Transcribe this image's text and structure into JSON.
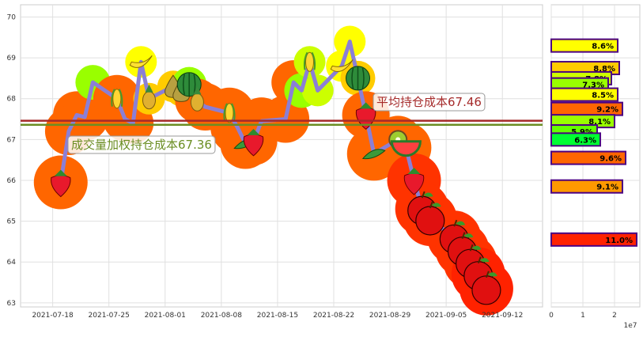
{
  "chart_data": [
    {
      "type": "line",
      "x_ticks": [
        "2021-07-18",
        "2021-07-25",
        "2021-08-01",
        "2021-08-08",
        "2021-08-15",
        "2021-08-22",
        "2021-08-29",
        "2021-09-05",
        "2021-09-12"
      ],
      "y_ticks": [
        63,
        64,
        65,
        66,
        67,
        68,
        69,
        70
      ],
      "xlim": [
        "2021-07-14",
        "2021-09-17"
      ],
      "ylim": [
        62.9,
        70.3
      ],
      "grid": true,
      "line_color": "#8b7fd6",
      "series": [
        {
          "x": [
            "2021-07-19",
            "2021-07-20",
            "2021-07-21",
            "2021-07-22",
            "2021-07-23",
            "2021-07-26",
            "2021-07-27",
            "2021-07-28",
            "2021-07-29",
            "2021-07-30",
            "2021-08-02",
            "2021-08-03",
            "2021-08-04",
            "2021-08-05",
            "2021-08-06",
            "2021-08-09",
            "2021-08-10",
            "2021-08-11",
            "2021-08-12",
            "2021-08-13",
            "2021-08-16",
            "2021-08-17",
            "2021-08-18",
            "2021-08-19",
            "2021-08-20",
            "2021-08-23",
            "2021-08-24",
            "2021-08-25",
            "2021-08-26",
            "2021-08-27",
            "2021-08-30",
            "2021-08-31",
            "2021-09-01",
            "2021-09-02",
            "2021-09-03",
            "2021-09-06",
            "2021-09-07",
            "2021-09-08",
            "2021-09-09",
            "2021-09-10"
          ],
          "values": [
            65.95,
            67.2,
            67.6,
            67.55,
            68.4,
            68.0,
            67.5,
            67.4,
            68.9,
            68.0,
            68.3,
            68.2,
            68.35,
            67.95,
            67.8,
            67.65,
            67.3,
            66.9,
            66.95,
            67.45,
            67.5,
            68.4,
            68.2,
            68.9,
            68.2,
            68.8,
            69.4,
            68.5,
            67.6,
            66.65,
            67.0,
            66.8,
            66.0,
            65.3,
            65.05,
            64.6,
            64.3,
            64.0,
            63.7,
            63.35
          ],
          "marker_colors": [
            "#ff6600",
            "#ff6600",
            "#ff6600",
            "#ff6600",
            "#99ff00",
            "#ff6600",
            "#ff6600",
            "#ff6600",
            "#ffff00",
            "#ffcc00",
            "#ffcc00",
            "#ffcc00",
            "#99ff00",
            "#ff6600",
            "#ff6600",
            "#ff6600",
            "#ff6600",
            "#ff6600",
            "#ff6600",
            "#ff6600",
            "#ff6600",
            "#ff6600",
            "#99ff00",
            "#ccff00",
            "#ccff00",
            "#ffff00",
            "#ffff00",
            "#ffcc00",
            "#ff6600",
            "#ff6600",
            "#ff6600",
            "#ff6600",
            "#ff3300",
            "#ff3300",
            "#ff3300",
            "#ff3300",
            "#ff3300",
            "#ff3300",
            "#ff2200",
            "#ff2200"
          ]
        }
      ],
      "reference_lines": [
        {
          "label": "平均持仓成本67.46",
          "value": 67.46,
          "color": "#a52a2a"
        },
        {
          "label": "成交量加权持仓成本67.36",
          "value": 67.36,
          "color": "#6b8e23"
        }
      ]
    },
    {
      "type": "bar",
      "orientation": "horizontal",
      "x_ticks": [
        "0",
        "1",
        "2"
      ],
      "x_scale_label": "1e7",
      "xlim": [
        0,
        28000000
      ],
      "ylim": [
        62.9,
        70.3
      ],
      "bars": [
        {
          "price": 69.3,
          "volume": 21000000,
          "pct_label": "8.6%",
          "color": "#ffff00"
        },
        {
          "price": 68.75,
          "volume": 21500000,
          "pct_label": "8.8%",
          "color": "#ffcc00"
        },
        {
          "price": 68.5,
          "volume": 19000000,
          "pct_label": "7.8%",
          "color": "#ccff00"
        },
        {
          "price": 68.35,
          "volume": 18000000,
          "pct_label": "7.3%",
          "color": "#99ff00"
        },
        {
          "price": 68.1,
          "volume": 21000000,
          "pct_label": "8.5%",
          "color": "#ffff00"
        },
        {
          "price": 67.75,
          "volume": 22500000,
          "pct_label": "9.2%",
          "color": "#ff6600"
        },
        {
          "price": 67.45,
          "volume": 20000000,
          "pct_label": "8.1%",
          "color": "#99ff00"
        },
        {
          "price": 67.2,
          "volume": 14500000,
          "pct_label": "5.9%",
          "color": "#66ff00"
        },
        {
          "price": 67.0,
          "volume": 15500000,
          "pct_label": "6.3%",
          "color": "#00ff33"
        },
        {
          "price": 66.55,
          "volume": 23500000,
          "pct_label": "9.6%",
          "color": "#ff6600"
        },
        {
          "price": 65.85,
          "volume": 22500000,
          "pct_label": "9.1%",
          "color": "#ff9900"
        },
        {
          "price": 64.55,
          "volume": 27000000,
          "pct_label": "11.0%",
          "color": "#ff2200"
        }
      ],
      "bar_edge_color": "#4b0082"
    }
  ]
}
